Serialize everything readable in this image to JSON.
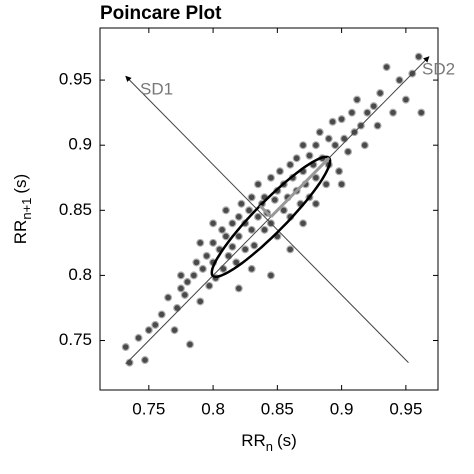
{
  "chart_data": {
    "type": "scatter",
    "title": "Poincare Plot",
    "xlabel": {
      "main": "RR",
      "sub": "n",
      "unit": "(s)"
    },
    "ylabel": {
      "main": "RR",
      "sub": "n+1",
      "unit": "(s)"
    },
    "xlim": [
      0.712,
      0.975
    ],
    "ylim": [
      0.712,
      0.99
    ],
    "xticks": [
      0.75,
      0.8,
      0.85,
      0.9,
      0.95
    ],
    "yticks": [
      0.75,
      0.8,
      0.85,
      0.9,
      0.95
    ],
    "series": [
      {
        "color": "#4a4a4a",
        "x": [
          0.732,
          0.735,
          0.742,
          0.747,
          0.75,
          0.755,
          0.76,
          0.765,
          0.77,
          0.772,
          0.775,
          0.778,
          0.78,
          0.782,
          0.785,
          0.787,
          0.79,
          0.792,
          0.795,
          0.797,
          0.8,
          0.8,
          0.802,
          0.805,
          0.807,
          0.808,
          0.81,
          0.812,
          0.815,
          0.815,
          0.818,
          0.82,
          0.82,
          0.822,
          0.825,
          0.825,
          0.828,
          0.83,
          0.83,
          0.832,
          0.835,
          0.835,
          0.838,
          0.84,
          0.84,
          0.842,
          0.845,
          0.845,
          0.848,
          0.85,
          0.85,
          0.852,
          0.855,
          0.855,
          0.858,
          0.86,
          0.86,
          0.862,
          0.865,
          0.865,
          0.868,
          0.87,
          0.87,
          0.872,
          0.875,
          0.875,
          0.878,
          0.88,
          0.88,
          0.883,
          0.885,
          0.888,
          0.89,
          0.89,
          0.893,
          0.895,
          0.898,
          0.9,
          0.902,
          0.905,
          0.908,
          0.91,
          0.912,
          0.915,
          0.918,
          0.92,
          0.925,
          0.928,
          0.93,
          0.935,
          0.94,
          0.945,
          0.95,
          0.955,
          0.96,
          0.962,
          0.845,
          0.82,
          0.86,
          0.83,
          0.79,
          0.8,
          0.81,
          0.775,
          0.87,
          0.88,
          0.9
        ],
        "y": [
          0.745,
          0.733,
          0.752,
          0.735,
          0.758,
          0.762,
          0.77,
          0.783,
          0.758,
          0.775,
          0.79,
          0.785,
          0.795,
          0.747,
          0.8,
          0.81,
          0.78,
          0.805,
          0.815,
          0.792,
          0.81,
          0.825,
          0.798,
          0.82,
          0.835,
          0.805,
          0.83,
          0.815,
          0.84,
          0.822,
          0.81,
          0.845,
          0.83,
          0.855,
          0.82,
          0.84,
          0.85,
          0.835,
          0.86,
          0.823,
          0.845,
          0.87,
          0.855,
          0.835,
          0.86,
          0.848,
          0.875,
          0.84,
          0.858,
          0.83,
          0.865,
          0.88,
          0.85,
          0.87,
          0.86,
          0.885,
          0.845,
          0.875,
          0.865,
          0.89,
          0.855,
          0.88,
          0.9,
          0.87,
          0.892,
          0.86,
          0.885,
          0.9,
          0.875,
          0.91,
          0.89,
          0.87,
          0.905,
          0.885,
          0.918,
          0.9,
          0.88,
          0.92,
          0.905,
          0.895,
          0.925,
          0.91,
          0.935,
          0.915,
          0.9,
          0.925,
          0.93,
          0.915,
          0.94,
          0.96,
          0.925,
          0.95,
          0.935,
          0.955,
          0.968,
          0.925,
          0.8,
          0.79,
          0.82,
          0.805,
          0.825,
          0.84,
          0.85,
          0.8,
          0.84,
          0.855,
          0.87
        ]
      }
    ],
    "identity_line": [
      0.732,
      0.968
    ],
    "perpendicular_line": {
      "x": [
        0.952,
        0.732
      ],
      "y": [
        0.733,
        0.953
      ]
    },
    "ellipse": {
      "center": 0.845,
      "sd1": 0.012,
      "sd2": 0.064
    },
    "annotations": [
      "SD1",
      "SD2"
    ]
  }
}
